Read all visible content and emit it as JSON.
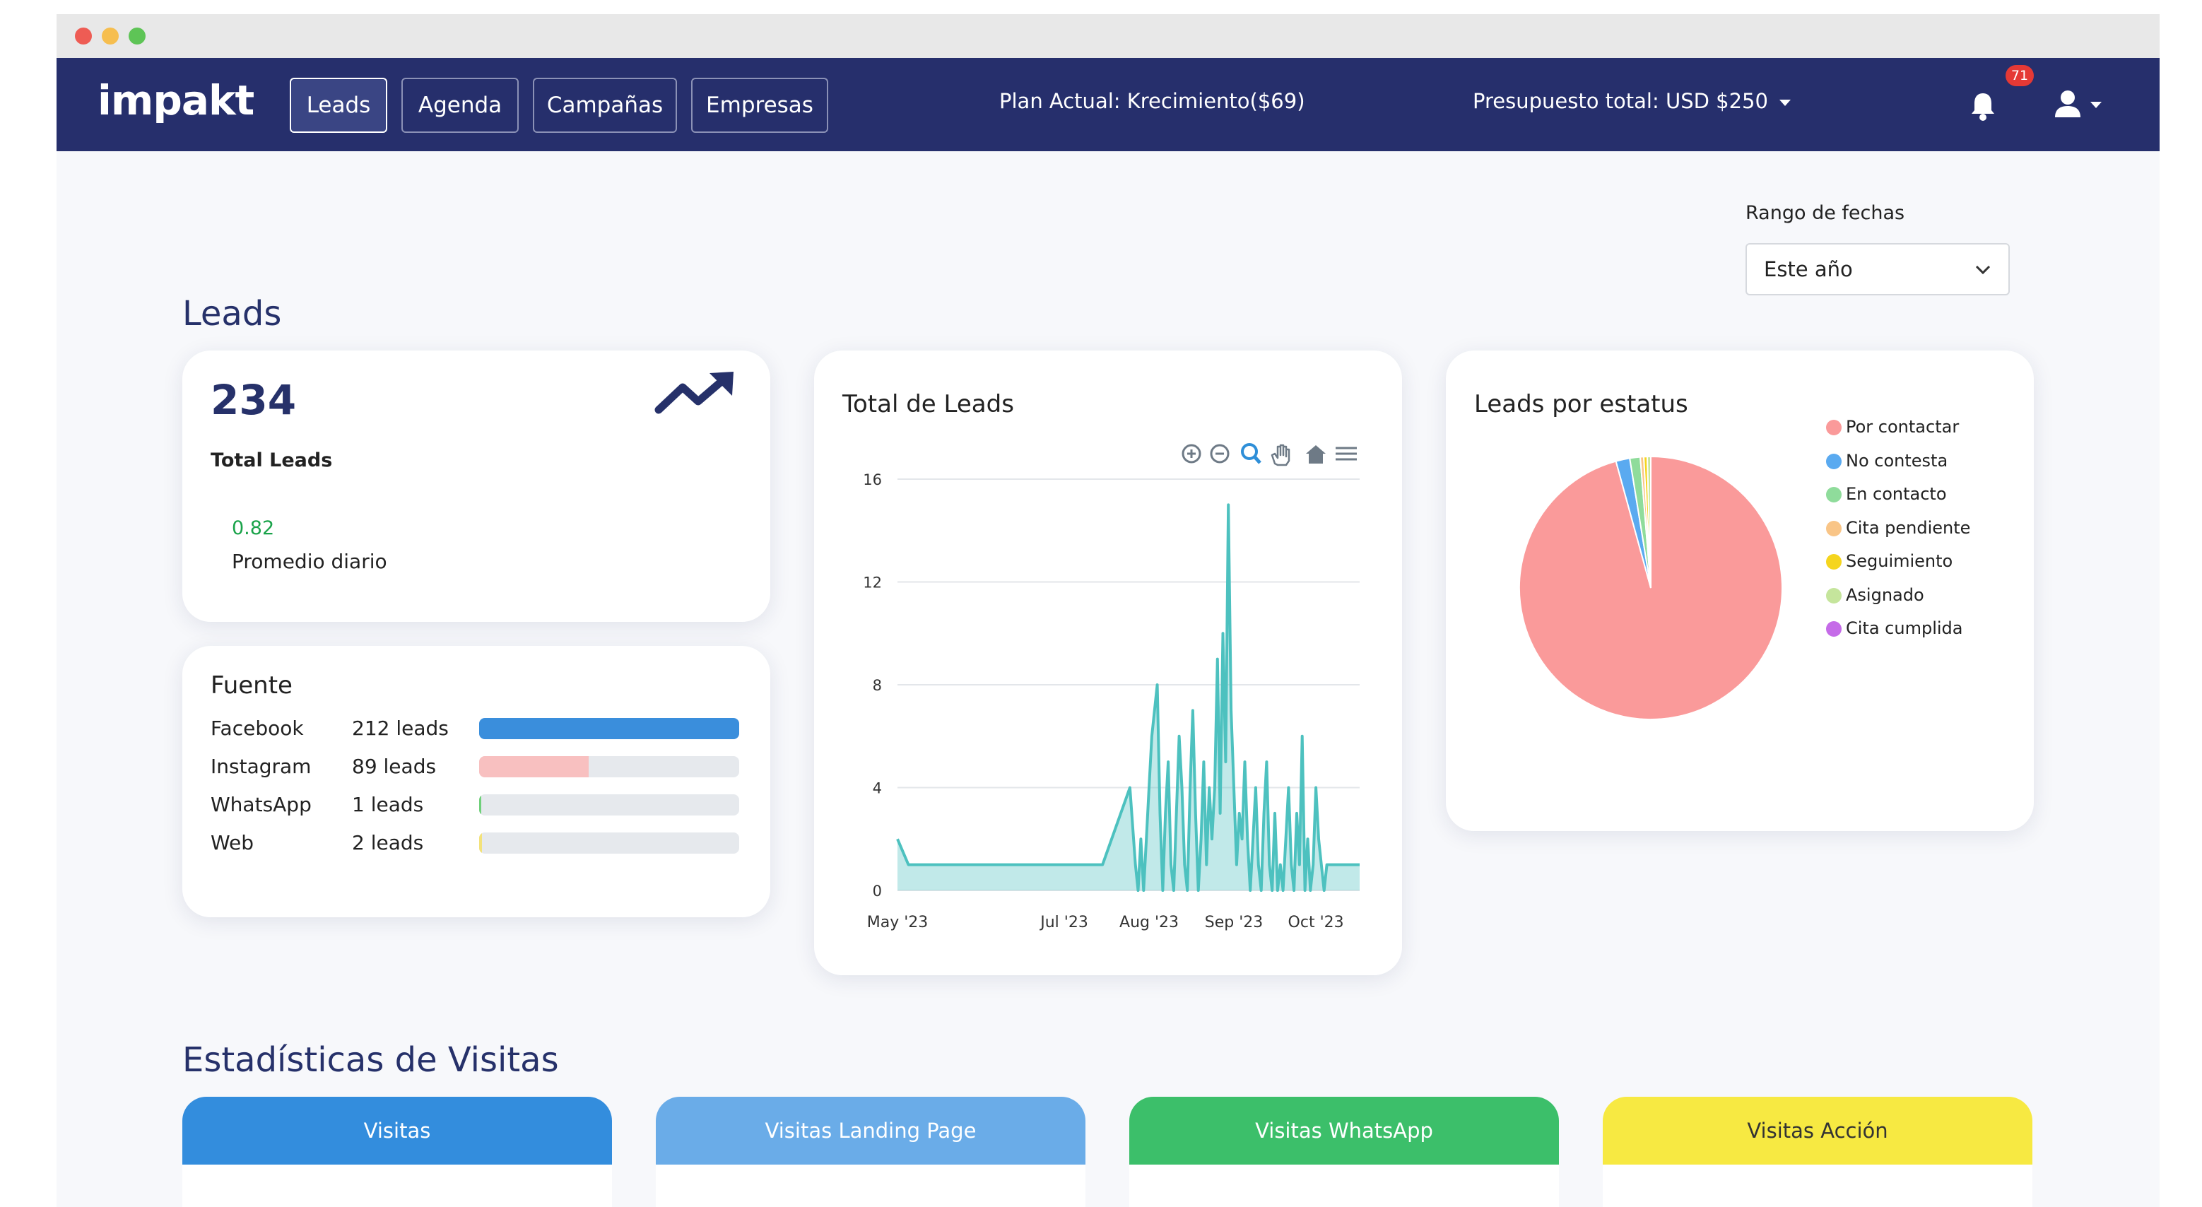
{
  "window": {
    "traffic_lights": [
      "#ee5c54",
      "#f6be4f",
      "#5ec456"
    ]
  },
  "navbar": {
    "logo": "impakt",
    "tabs": [
      {
        "label": "Leads",
        "active": true
      },
      {
        "label": "Agenda",
        "active": false
      },
      {
        "label": "Campañas",
        "active": false
      },
      {
        "label": "Empresas",
        "active": false
      }
    ],
    "plan": "Plan Actual: Krecimiento($69)",
    "budget": "Presupuesto total: USD $250",
    "notification_count": "71",
    "icons": [
      "bell-icon",
      "user-icon"
    ]
  },
  "filters": {
    "date_range_label": "Rango de fechas",
    "date_range_value": "Este año"
  },
  "leads": {
    "title": "Leads",
    "summary": {
      "total": "234",
      "total_label": "Total Leads",
      "daily_avg": "0.82",
      "daily_avg_label": "Promedio diario",
      "icon": "trending-up-icon"
    },
    "sources": {
      "title": "Fuente",
      "rows": [
        {
          "name": "Facebook",
          "count": "212 leads",
          "fraction": 1.0,
          "color": "#3a8edc"
        },
        {
          "name": "Instagram",
          "count": "89 leads",
          "fraction": 0.42,
          "color": "#f8c0c0"
        },
        {
          "name": "WhatsApp",
          "count": "1 leads",
          "fraction": 0.008,
          "color": "#6fd07a"
        },
        {
          "name": "Web",
          "count": "2 leads",
          "fraction": 0.012,
          "color": "#f3e27a"
        }
      ]
    }
  },
  "total_chart": {
    "title": "Total de Leads",
    "toolbar_icons": [
      "zoom-in-icon",
      "zoom-out-icon",
      "magnify-icon",
      "pan-hand-icon",
      "home-icon",
      "menu-icon"
    ]
  },
  "status_chart": {
    "title": "Leads por estatus"
  },
  "chart_data": [
    {
      "type": "area",
      "title": "Total de Leads",
      "xlabel": "",
      "ylabel": "",
      "x_tick_labels": [
        "May '23",
        "Jul '23",
        "Aug '23",
        "Sep '23",
        "Oct '23"
      ],
      "y_ticks": [
        0,
        4,
        8,
        12,
        16
      ],
      "ylim": [
        0,
        16
      ],
      "xlim": [
        "2023-05-01",
        "2023-10-17"
      ],
      "grid": true,
      "color": "#4dc1bf",
      "points": [
        [
          "2023-05-01",
          2
        ],
        [
          "2023-05-05",
          1
        ],
        [
          "2023-05-15",
          1
        ],
        [
          "2023-06-01",
          1
        ],
        [
          "2023-06-15",
          1
        ],
        [
          "2023-07-01",
          1
        ],
        [
          "2023-07-15",
          1
        ],
        [
          "2023-07-25",
          4
        ],
        [
          "2023-07-27",
          1
        ],
        [
          "2023-07-28",
          0
        ],
        [
          "2023-07-29",
          2
        ],
        [
          "2023-07-30",
          0
        ],
        [
          "2023-07-31",
          2
        ],
        [
          "2023-08-01",
          4
        ],
        [
          "2023-08-02",
          6
        ],
        [
          "2023-08-04",
          8
        ],
        [
          "2023-08-05",
          3
        ],
        [
          "2023-08-06",
          0
        ],
        [
          "2023-08-07",
          3
        ],
        [
          "2023-08-08",
          5
        ],
        [
          "2023-08-09",
          1
        ],
        [
          "2023-08-10",
          0
        ],
        [
          "2023-08-11",
          3
        ],
        [
          "2023-08-12",
          6
        ],
        [
          "2023-08-13",
          4
        ],
        [
          "2023-08-14",
          1
        ],
        [
          "2023-08-15",
          0
        ],
        [
          "2023-08-16",
          4
        ],
        [
          "2023-08-17",
          7
        ],
        [
          "2023-08-18",
          3
        ],
        [
          "2023-08-19",
          0
        ],
        [
          "2023-08-20",
          2
        ],
        [
          "2023-08-21",
          5
        ],
        [
          "2023-08-22",
          1
        ],
        [
          "2023-08-23",
          4
        ],
        [
          "2023-08-24",
          2
        ],
        [
          "2023-08-25",
          4
        ],
        [
          "2023-08-26",
          9
        ],
        [
          "2023-08-27",
          3
        ],
        [
          "2023-08-28",
          10
        ],
        [
          "2023-08-29",
          5
        ],
        [
          "2023-08-30",
          15
        ],
        [
          "2023-08-31",
          7
        ],
        [
          "2023-09-01",
          4
        ],
        [
          "2023-09-02",
          1
        ],
        [
          "2023-09-03",
          3
        ],
        [
          "2023-09-04",
          2
        ],
        [
          "2023-09-05",
          5
        ],
        [
          "2023-09-06",
          2
        ],
        [
          "2023-09-07",
          0
        ],
        [
          "2023-09-08",
          2
        ],
        [
          "2023-09-09",
          4
        ],
        [
          "2023-09-10",
          1
        ],
        [
          "2023-09-11",
          0
        ],
        [
          "2023-09-12",
          3
        ],
        [
          "2023-09-13",
          5
        ],
        [
          "2023-09-14",
          1
        ],
        [
          "2023-09-15",
          0
        ],
        [
          "2023-09-16",
          3
        ],
        [
          "2023-09-17",
          0
        ],
        [
          "2023-09-18",
          1
        ],
        [
          "2023-09-19",
          0
        ],
        [
          "2023-09-20",
          2
        ],
        [
          "2023-09-21",
          4
        ],
        [
          "2023-09-22",
          1
        ],
        [
          "2023-09-23",
          0
        ],
        [
          "2023-09-24",
          3
        ],
        [
          "2023-09-25",
          1
        ],
        [
          "2023-09-26",
          6
        ],
        [
          "2023-09-27",
          0
        ],
        [
          "2023-09-28",
          2
        ],
        [
          "2023-09-29",
          0
        ],
        [
          "2023-09-30",
          1
        ],
        [
          "2023-10-01",
          4
        ],
        [
          "2023-10-02",
          2
        ],
        [
          "2023-10-03",
          1
        ],
        [
          "2023-10-04",
          0
        ],
        [
          "2023-10-05",
          1
        ],
        [
          "2023-10-10",
          1
        ],
        [
          "2023-10-17",
          1
        ]
      ]
    },
    {
      "type": "pie",
      "title": "Leads por estatus",
      "legend_position": "right",
      "slices": [
        {
          "label": "Por contactar",
          "value": 224,
          "color": "#fa9a9a"
        },
        {
          "label": "No contesta",
          "value": 4,
          "color": "#5aaaf0"
        },
        {
          "label": "En contacto",
          "value": 3,
          "color": "#8fdc9b"
        },
        {
          "label": "Cita pendiente",
          "value": 1,
          "color": "#f9c587"
        },
        {
          "label": "Seguimiento",
          "value": 1,
          "color": "#f5d51e"
        },
        {
          "label": "Asignado",
          "value": 1,
          "color": "#c5e59c"
        },
        {
          "label": "Cita cumplida",
          "value": 0,
          "color": "#c56be8"
        }
      ]
    }
  ],
  "visits": {
    "title": "Estadísticas de Visitas",
    "cards": [
      {
        "label": "Visitas",
        "color": "#338ddd",
        "text_color": "#ffffff"
      },
      {
        "label": "Visitas Landing Page",
        "color": "#6aace8",
        "text_color": "#ffffff"
      },
      {
        "label": "Visitas WhatsApp",
        "color": "#3cbf6a",
        "text_color": "#ffffff"
      },
      {
        "label": "Visitas Acción",
        "color": "#f7e942",
        "text_color": "#333333"
      }
    ]
  }
}
